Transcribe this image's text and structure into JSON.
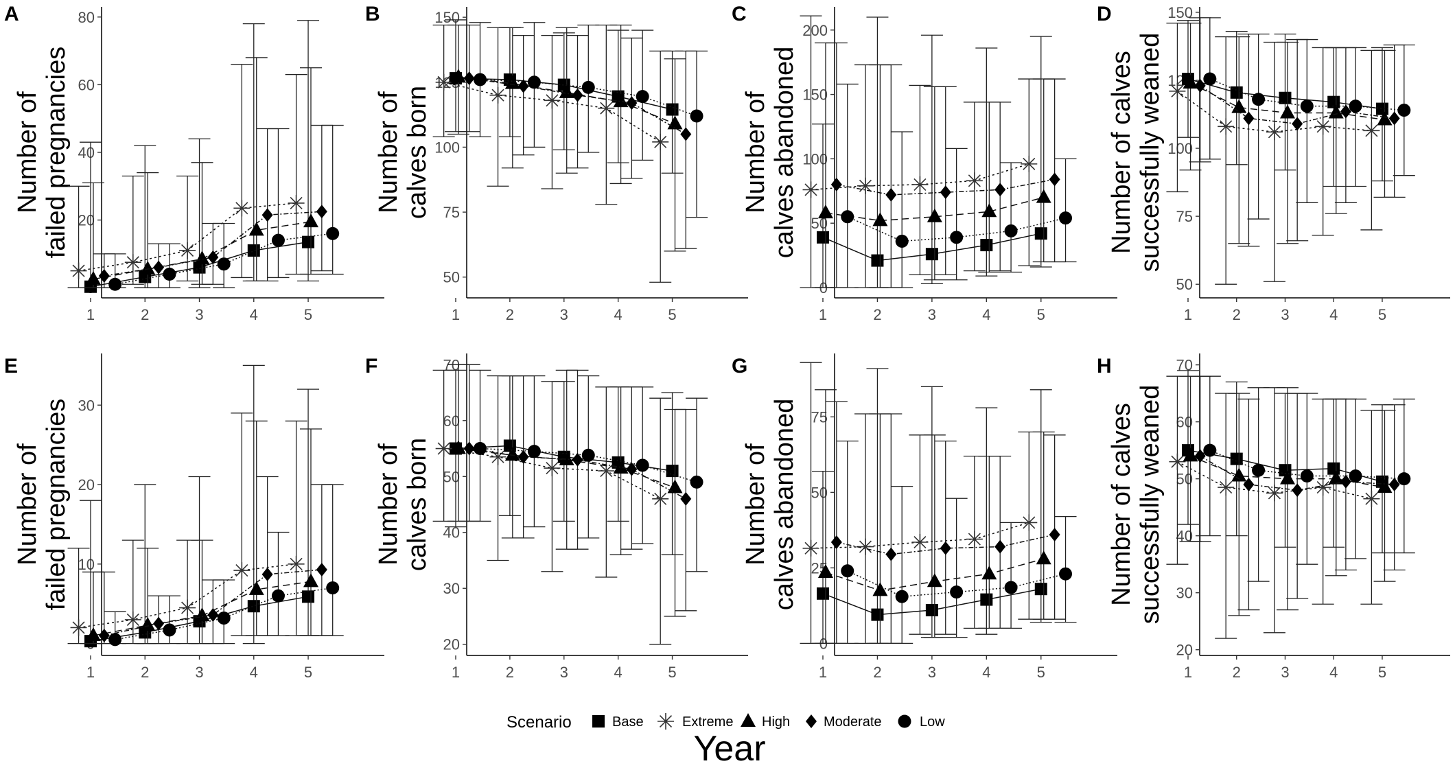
{
  "figure": {
    "x_axis_title": "Year",
    "legend": {
      "title": "Scenario",
      "items": [
        {
          "label": "Base",
          "shape": "square"
        },
        {
          "label": "Extreme",
          "shape": "asterisk"
        },
        {
          "label": "High",
          "shape": "triangle"
        },
        {
          "label": "Moderate",
          "shape": "diamond"
        },
        {
          "label": "Low",
          "shape": "circle"
        }
      ]
    }
  },
  "chart_data": [
    {
      "panel": "A",
      "type": "line",
      "title": "",
      "ylabel": [
        "Number of",
        "failed pregnancies"
      ],
      "xlabel": "Year",
      "ylim": [
        -3,
        83
      ],
      "yticks": [
        0,
        20,
        40,
        60,
        80
      ],
      "categories": [
        1,
        2,
        3,
        4,
        5
      ],
      "series": [
        {
          "name": "Base",
          "values": [
            0.3,
            3.2,
            6,
            11,
            13.5
          ],
          "lo": [
            0,
            0,
            0,
            2,
            2
          ],
          "hi": [
            43,
            42,
            44,
            78,
            79
          ]
        },
        {
          "name": "Extreme",
          "values": [
            5,
            7.5,
            11,
            23.5,
            25
          ],
          "lo": [
            0,
            1,
            2,
            3,
            4
          ],
          "hi": [
            30,
            33,
            33,
            66,
            63
          ]
        },
        {
          "name": "High",
          "values": [
            2.5,
            5.5,
            8.5,
            17,
            19.5
          ],
          "lo": [
            0,
            0,
            1,
            2,
            4
          ],
          "hi": [
            31,
            34,
            37,
            68,
            65
          ]
        },
        {
          "name": "Moderate",
          "values": [
            3.5,
            6,
            9,
            21.5,
            22.5
          ],
          "lo": [
            0,
            0,
            1,
            2,
            5
          ],
          "hi": [
            10,
            13,
            19,
            47,
            48
          ]
        },
        {
          "name": "Low",
          "values": [
            1,
            4,
            7,
            14,
            16
          ],
          "lo": [
            0,
            0,
            0,
            3,
            4
          ],
          "hi": [
            10,
            13,
            19,
            47,
            48
          ]
        }
      ]
    },
    {
      "panel": "B",
      "type": "line",
      "title": "",
      "ylabel": [
        "Number of",
        "calves born"
      ],
      "xlabel": "Year",
      "ylim": [
        42,
        154
      ],
      "yticks": [
        50,
        75,
        100,
        125,
        150
      ],
      "categories": [
        1,
        2,
        3,
        4,
        5
      ],
      "series": [
        {
          "name": "Base",
          "values": [
            126.5,
            126,
            124,
            119.5,
            114.5
          ],
          "lo": [
            106,
            104,
            99,
            94,
            90
          ],
          "hi": [
            149,
            146,
            144,
            145,
            137
          ]
        },
        {
          "name": "Extreme",
          "values": [
            125,
            120,
            118,
            115,
            102
          ],
          "lo": [
            104,
            85,
            84,
            78,
            48
          ],
          "hi": [
            147,
            146,
            143,
            147,
            137
          ]
        },
        {
          "name": "High",
          "values": [
            127,
            124.5,
            121,
            117.5,
            109
          ],
          "lo": [
            105,
            92,
            90,
            86,
            60
          ],
          "hi": [
            147,
            146,
            146,
            147,
            134
          ]
        },
        {
          "name": "Moderate",
          "values": [
            126.5,
            123.5,
            120,
            117,
            105
          ],
          "lo": [
            106,
            97,
            92,
            88,
            61
          ],
          "hi": [
            147,
            143,
            143,
            142,
            137
          ]
        },
        {
          "name": "Low",
          "values": [
            126,
            125,
            123,
            119.5,
            112
          ],
          "lo": [
            104,
            100,
            98,
            95,
            73
          ],
          "hi": [
            148,
            148,
            147,
            145,
            137
          ]
        }
      ]
    },
    {
      "panel": "C",
      "type": "line",
      "title": "",
      "ylabel": [
        "Number of",
        "calves abandoned"
      ],
      "xlabel": "Year",
      "ylim": [
        -8,
        218
      ],
      "yticks": [
        0,
        50,
        100,
        150,
        200
      ],
      "categories": [
        1,
        2,
        3,
        4,
        5
      ],
      "series": [
        {
          "name": "Base",
          "values": [
            39,
            21,
            26,
            33,
            42
          ],
          "lo": [
            0,
            0,
            3,
            9,
            16
          ],
          "hi": [
            127,
            210,
            196,
            186,
            195
          ]
        },
        {
          "name": "Extreme",
          "values": [
            76,
            79,
            80,
            83,
            96
          ],
          "lo": [
            0,
            0,
            10,
            13,
            17
          ],
          "hi": [
            211,
            173,
            157,
            144,
            162
          ]
        },
        {
          "name": "High",
          "values": [
            58,
            52,
            55,
            59,
            70
          ],
          "lo": [
            0,
            0,
            6,
            12,
            20
          ],
          "hi": [
            190,
            173,
            156,
            144,
            162
          ]
        },
        {
          "name": "Moderate",
          "values": [
            80,
            72,
            74,
            76,
            84
          ],
          "lo": [
            0,
            0,
            10,
            13,
            20
          ],
          "hi": [
            190,
            173,
            156,
            144,
            162
          ]
        },
        {
          "name": "Low",
          "values": [
            55,
            36,
            39,
            44,
            54
          ],
          "lo": [
            0,
            0,
            6,
            12,
            20
          ],
          "hi": [
            158,
            121,
            108,
            97,
            100
          ]
        }
      ]
    },
    {
      "panel": "D",
      "type": "line",
      "title": "",
      "ylabel": [
        "Number of calves",
        "successfully weaned"
      ],
      "xlabel": "Year",
      "ylim": [
        45,
        152
      ],
      "yticks": [
        50,
        75,
        100,
        125,
        150
      ],
      "categories": [
        1,
        2,
        3,
        4,
        5
      ],
      "series": [
        {
          "name": "Base",
          "values": [
            125.5,
            120.5,
            118.5,
            117,
            114.5
          ],
          "lo": [
            104,
            94,
            92,
            86,
            88
          ],
          "hi": [
            147,
            143,
            142,
            137,
            137
          ]
        },
        {
          "name": "Extreme",
          "values": [
            121,
            108,
            106,
            108,
            106.5
          ],
          "lo": [
            84,
            50,
            51,
            68,
            70
          ],
          "hi": [
            146,
            141,
            139,
            137,
            136
          ]
        },
        {
          "name": "High",
          "values": [
            124,
            115,
            113,
            113,
            110.5
          ],
          "lo": [
            92,
            65,
            65,
            76,
            82
          ],
          "hi": [
            146,
            141,
            139,
            137,
            136
          ]
        },
        {
          "name": "Moderate",
          "values": [
            123,
            111,
            109,
            113.5,
            111
          ],
          "lo": [
            95,
            64,
            66,
            80,
            82
          ],
          "hi": [
            148,
            142,
            140,
            137,
            138
          ]
        },
        {
          "name": "Low",
          "values": [
            125.5,
            118,
            115.5,
            115.5,
            114
          ],
          "lo": [
            96,
            74,
            80,
            86,
            90
          ],
          "hi": [
            148,
            142,
            140,
            137,
            138
          ]
        }
      ]
    },
    {
      "panel": "E",
      "type": "line",
      "title": "",
      "ylabel": [
        "Number of",
        "failed pregnancies"
      ],
      "xlabel": "Year",
      "ylim": [
        -1.5,
        36.5
      ],
      "yticks": [
        0,
        10,
        20,
        30
      ],
      "categories": [
        1,
        2,
        3,
        4,
        5
      ],
      "series": [
        {
          "name": "Base",
          "values": [
            0.3,
            1.4,
            2.8,
            4.7,
            5.9
          ],
          "lo": [
            0,
            0,
            0,
            0,
            1
          ],
          "hi": [
            18,
            20,
            21,
            35,
            32
          ]
        },
        {
          "name": "Extreme",
          "values": [
            2,
            3,
            4.5,
            9.2,
            10
          ],
          "lo": [
            0,
            0,
            0,
            1,
            1
          ],
          "hi": [
            12,
            13,
            13,
            29,
            28
          ]
        },
        {
          "name": "High",
          "values": [
            1,
            2.3,
            3.5,
            6.8,
            7.8
          ],
          "lo": [
            0,
            0,
            0,
            1,
            1
          ],
          "hi": [
            9,
            12,
            13,
            28,
            27
          ]
        },
        {
          "name": "Moderate",
          "values": [
            1,
            2.5,
            3.6,
            8.7,
            9.3
          ],
          "lo": [
            0,
            0,
            0,
            1,
            1
          ],
          "hi": [
            9,
            6,
            8,
            21,
            20
          ]
        },
        {
          "name": "Low",
          "values": [
            0.5,
            1.7,
            3.2,
            6,
            7
          ],
          "lo": [
            0,
            0,
            0,
            1,
            1
          ],
          "hi": [
            4,
            6,
            8,
            14,
            20
          ]
        }
      ]
    },
    {
      "panel": "F",
      "type": "line",
      "title": "",
      "ylabel": [
        "Number of",
        "calves born"
      ],
      "xlabel": "Year",
      "ylim": [
        18,
        72
      ],
      "yticks": [
        20,
        30,
        40,
        50,
        60,
        70
      ],
      "categories": [
        1,
        2,
        3,
        4,
        5
      ],
      "series": [
        {
          "name": "Base",
          "values": [
            55,
            55.5,
            53.5,
            52.5,
            51
          ],
          "lo": [
            41,
            43,
            42,
            42,
            36
          ],
          "hi": [
            69,
            68,
            67,
            66,
            65
          ]
        },
        {
          "name": "Extreme",
          "values": [
            55,
            53.5,
            51.5,
            51,
            46
          ],
          "lo": [
            42,
            35,
            33,
            32,
            20
          ],
          "hi": [
            69,
            68,
            67,
            66,
            64
          ]
        },
        {
          "name": "High",
          "values": [
            55,
            53.8,
            53,
            51.5,
            48
          ],
          "lo": [
            42,
            39,
            37,
            36,
            25
          ],
          "hi": [
            70,
            68,
            69,
            66,
            62
          ]
        },
        {
          "name": "Moderate",
          "values": [
            55,
            53.5,
            53,
            51.3,
            46
          ],
          "lo": [
            42,
            39,
            37,
            37,
            26
          ],
          "hi": [
            70,
            68,
            69,
            66,
            62
          ]
        },
        {
          "name": "Low",
          "values": [
            55,
            54.5,
            53.8,
            52,
            49
          ],
          "lo": [
            42,
            41,
            39,
            38,
            33
          ],
          "hi": [
            69,
            68,
            68,
            66,
            64
          ]
        }
      ]
    },
    {
      "panel": "G",
      "type": "line",
      "title": "",
      "ylabel": [
        "Number of",
        "calves abandoned"
      ],
      "xlabel": "Year",
      "ylim": [
        -4,
        96
      ],
      "yticks": [
        0,
        25,
        50,
        75
      ],
      "categories": [
        1,
        2,
        3,
        4,
        5
      ],
      "series": [
        {
          "name": "Base",
          "values": [
            16.5,
            9.5,
            11,
            14.5,
            18
          ],
          "lo": [
            0,
            0,
            2,
            3,
            7
          ],
          "hi": [
            57,
            91,
            85,
            78,
            84
          ]
        },
        {
          "name": "Extreme",
          "values": [
            31.5,
            32,
            33.5,
            34.5,
            40
          ],
          "lo": [
            0,
            0,
            3,
            5,
            8
          ],
          "hi": [
            93,
            76,
            69,
            62,
            70
          ]
        },
        {
          "name": "High",
          "values": [
            23.5,
            17.5,
            20.5,
            23,
            28
          ],
          "lo": [
            0,
            0,
            2,
            5,
            8
          ],
          "hi": [
            84,
            76,
            69,
            62,
            70
          ]
        },
        {
          "name": "Moderate",
          "values": [
            33.5,
            29.5,
            31.5,
            32,
            36
          ],
          "lo": [
            0,
            0,
            3,
            5,
            8
          ],
          "hi": [
            80,
            76,
            67,
            62,
            69
          ]
        },
        {
          "name": "Low",
          "values": [
            24,
            15.5,
            17,
            18.5,
            23
          ],
          "lo": [
            0,
            0,
            2,
            5,
            7
          ],
          "hi": [
            67,
            52,
            48,
            40,
            42
          ]
        }
      ]
    },
    {
      "panel": "H",
      "type": "line",
      "title": "",
      "ylabel": [
        "Number of calves",
        "successfully weaned"
      ],
      "xlabel": "Year",
      "ylim": [
        19,
        72
      ],
      "yticks": [
        20,
        30,
        40,
        50,
        60,
        70
      ],
      "categories": [
        1,
        2,
        3,
        4,
        5
      ],
      "series": [
        {
          "name": "Base",
          "values": [
            55,
            53.5,
            51.5,
            51.8,
            49.5
          ],
          "lo": [
            42,
            40,
            38,
            38,
            37
          ],
          "hi": [
            69,
            67,
            65,
            64,
            63
          ]
        },
        {
          "name": "Extreme",
          "values": [
            53,
            48.5,
            47.5,
            48.5,
            46.5
          ],
          "lo": [
            35,
            22,
            23,
            28,
            28
          ],
          "hi": [
            68,
            65,
            66,
            64,
            62
          ]
        },
        {
          "name": "High",
          "values": [
            54,
            50.5,
            50,
            50,
            48.5
          ],
          "lo": [
            39,
            26,
            27,
            33,
            32
          ],
          "hi": [
            68,
            65,
            66,
            64,
            62
          ]
        },
        {
          "name": "Moderate",
          "values": [
            54,
            49,
            48,
            49.5,
            49
          ],
          "lo": [
            39,
            27,
            29,
            34,
            34
          ],
          "hi": [
            68,
            64,
            65,
            64,
            63
          ]
        },
        {
          "name": "Low",
          "values": [
            55,
            51.5,
            50.5,
            50.5,
            50
          ],
          "lo": [
            40,
            32,
            35,
            36,
            37
          ],
          "hi": [
            68,
            66,
            65,
            64,
            64
          ]
        }
      ]
    }
  ]
}
